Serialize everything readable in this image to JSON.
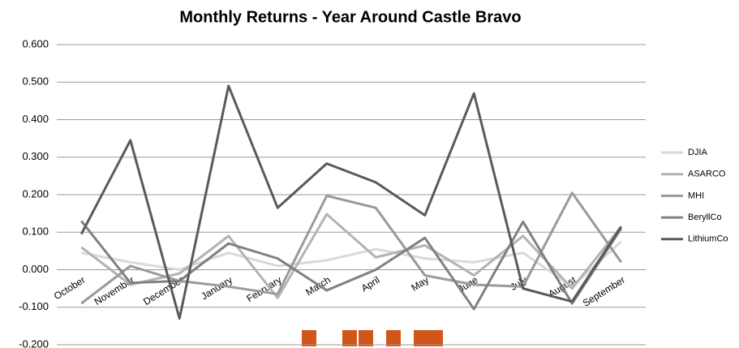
{
  "chart_data": {
    "type": "line",
    "title": "Monthly Returns - Year Around Castle Bravo",
    "categories": [
      "October",
      "November",
      "December",
      "January",
      "February",
      "March",
      "April",
      "May",
      "June",
      "July",
      "August",
      "September"
    ],
    "series": [
      {
        "name": "DJIA",
        "color": "#d9d9d9",
        "values": [
          0.045,
          0.02,
          0.0,
          0.045,
          0.01,
          0.025,
          0.055,
          0.03,
          0.02,
          0.045,
          -0.045,
          0.075
        ]
      },
      {
        "name": "ASARCO",
        "color": "#b3b3b3",
        "values": [
          0.06,
          -0.04,
          -0.01,
          0.09,
          -0.075,
          0.148,
          0.033,
          0.065,
          -0.015,
          0.09,
          -0.05,
          0.115
        ]
      },
      {
        "name": "MHI",
        "color": "#9a9a9a",
        "values": [
          -0.09,
          0.01,
          -0.03,
          -0.045,
          -0.065,
          0.197,
          0.165,
          -0.015,
          -0.04,
          -0.045,
          0.205,
          0.02
        ]
      },
      {
        "name": "BeryllCo",
        "color": "#808080",
        "values": [
          0.13,
          -0.035,
          -0.03,
          0.07,
          0.03,
          -0.055,
          0.0,
          0.085,
          -0.105,
          0.128,
          -0.09,
          0.11
        ]
      },
      {
        "name": "LithiumCo",
        "color": "#5a5a5a",
        "values": [
          0.095,
          0.345,
          -0.13,
          0.49,
          0.165,
          0.283,
          0.233,
          0.145,
          0.47,
          -0.05,
          -0.085,
          0.115
        ]
      }
    ],
    "ylim": [
      -0.2,
      0.6
    ],
    "yticks": [
      {
        "value": -0.2,
        "label": "-0.200"
      },
      {
        "value": -0.1,
        "label": "-0.100"
      },
      {
        "value": 0,
        "label": "0.000"
      },
      {
        "value": 0.1,
        "label": "0.100"
      },
      {
        "value": 0.2,
        "label": "0.200"
      },
      {
        "value": 0.3,
        "label": "0.300"
      },
      {
        "value": 0.4,
        "label": "0.400"
      },
      {
        "value": 0.5,
        "label": "0.500"
      },
      {
        "value": 0.6,
        "label": "0.600"
      }
    ],
    "grid": true,
    "legend": "right"
  }
}
